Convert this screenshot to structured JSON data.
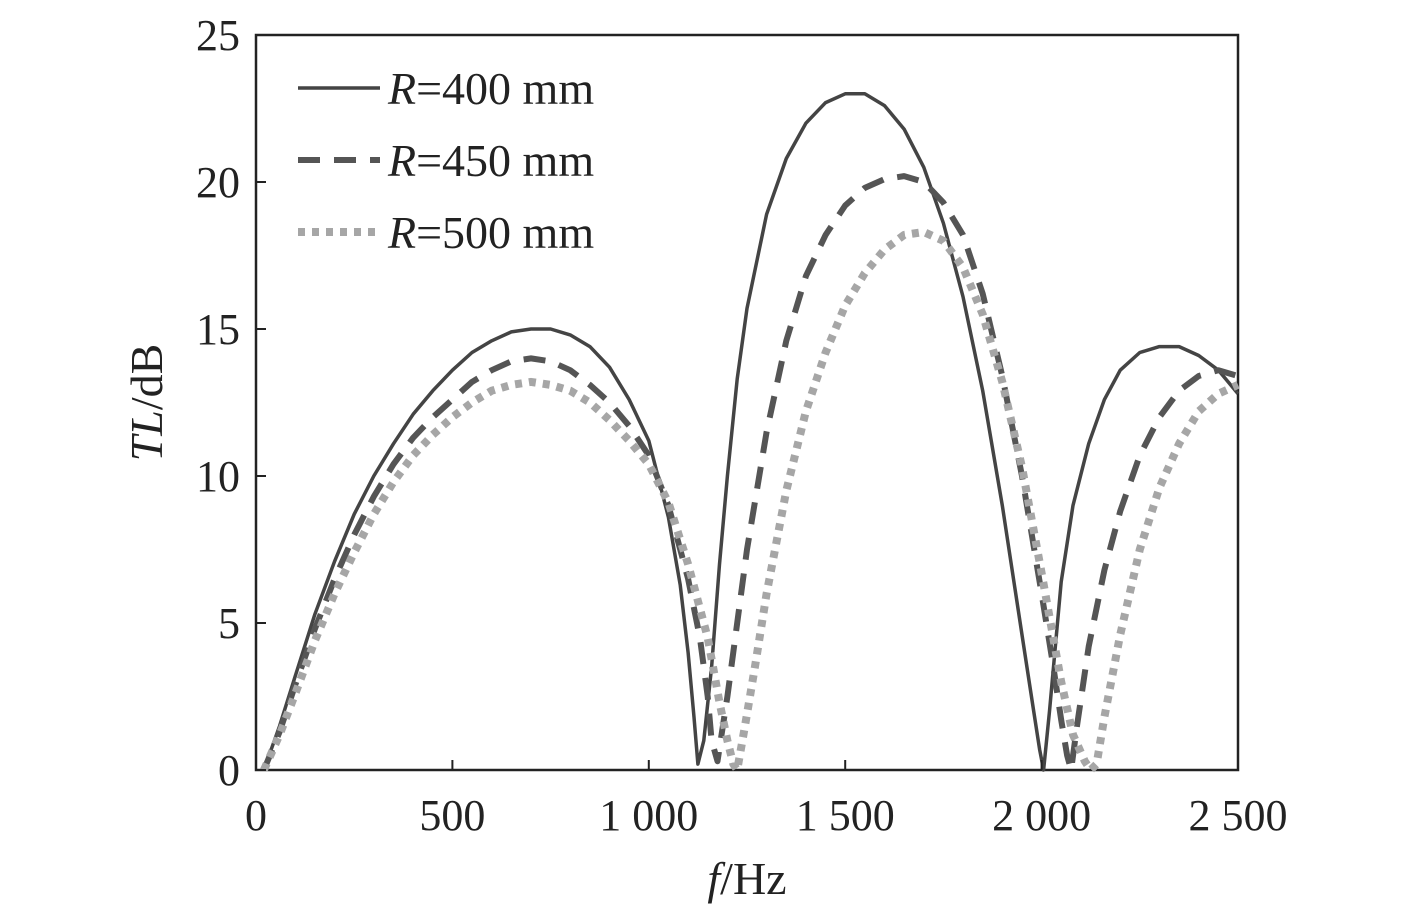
{
  "chart_data": {
    "type": "line",
    "xlabel": {
      "italic": "f",
      "rest": "/Hz"
    },
    "ylabel": {
      "italic": "TL",
      "rest": "/dB"
    },
    "xlim": [
      0,
      2500
    ],
    "ylim": [
      0,
      25
    ],
    "xticks": [
      0,
      500,
      1000,
      1500,
      2000,
      2500
    ],
    "xtick_labels": [
      "0",
      "500",
      "1 000",
      "1 500",
      "2 000",
      "2 500"
    ],
    "yticks": [
      0,
      5,
      10,
      15,
      20,
      25
    ],
    "ytick_labels": [
      "0",
      "5",
      "10",
      "15",
      "20",
      "25"
    ],
    "grid": false,
    "legend_position": "top-left",
    "series": [
      {
        "name": "R=400 mm",
        "label_italic": "R",
        "label_rest": "=400 mm",
        "style": "solid",
        "color": "#444444",
        "x": [
          20,
          60,
          100,
          150,
          200,
          250,
          300,
          350,
          400,
          450,
          500,
          550,
          600,
          650,
          700,
          750,
          800,
          850,
          900,
          950,
          1000,
          1050,
          1080,
          1100,
          1115,
          1125,
          1140,
          1160,
          1180,
          1200,
          1225,
          1250,
          1300,
          1350,
          1400,
          1450,
          1500,
          1550,
          1600,
          1650,
          1700,
          1750,
          1800,
          1850,
          1900,
          1950,
          1980,
          1995,
          2005,
          2020,
          2050,
          2080,
          2120,
          2160,
          2200,
          2250,
          2300,
          2350,
          2400,
          2450,
          2500
        ],
        "y": [
          0,
          1.5,
          3.2,
          5.3,
          7.1,
          8.7,
          10.0,
          11.1,
          12.1,
          12.9,
          13.6,
          14.2,
          14.6,
          14.9,
          15.0,
          15.0,
          14.8,
          14.4,
          13.7,
          12.6,
          11.2,
          8.6,
          6.3,
          4.0,
          1.8,
          0.2,
          1.0,
          3.5,
          7.0,
          10.0,
          13.3,
          15.7,
          18.9,
          20.8,
          22.0,
          22.7,
          23.0,
          23.0,
          22.6,
          21.8,
          20.5,
          18.6,
          16.1,
          12.9,
          9.0,
          4.6,
          2.0,
          0.7,
          0,
          2.0,
          6.4,
          9.0,
          11.1,
          12.6,
          13.6,
          14.2,
          14.4,
          14.4,
          14.1,
          13.6,
          12.8
        ]
      },
      {
        "name": "R=450 mm",
        "label_italic": "R",
        "label_rest": "=450 mm",
        "style": "dashed",
        "color": "#555555",
        "x": [
          20,
          60,
          100,
          150,
          200,
          250,
          300,
          350,
          400,
          450,
          500,
          550,
          600,
          650,
          700,
          750,
          800,
          850,
          900,
          950,
          1000,
          1050,
          1100,
          1130,
          1150,
          1160,
          1175,
          1200,
          1225,
          1250,
          1300,
          1350,
          1400,
          1450,
          1500,
          1550,
          1600,
          1650,
          1700,
          1750,
          1800,
          1850,
          1900,
          1950,
          2000,
          2030,
          2050,
          2065,
          2075,
          2090,
          2120,
          2160,
          2200,
          2250,
          2300,
          2350,
          2400,
          2450,
          2500
        ],
        "y": [
          0,
          1.3,
          2.9,
          4.8,
          6.5,
          8.0,
          9.3,
          10.4,
          11.3,
          12.0,
          12.6,
          13.2,
          13.6,
          13.9,
          14.0,
          13.9,
          13.6,
          13.1,
          12.5,
          11.7,
          10.7,
          9.0,
          6.5,
          4.5,
          2.5,
          1.0,
          0.3,
          2.5,
          5.0,
          7.5,
          11.5,
          14.6,
          16.8,
          18.2,
          19.2,
          19.8,
          20.1,
          20.2,
          20.0,
          19.3,
          18.2,
          16.2,
          13.4,
          10.0,
          6.0,
          3.5,
          1.7,
          0.5,
          0,
          1.5,
          4.2,
          6.8,
          8.8,
          10.7,
          12.0,
          12.9,
          13.4,
          13.6,
          13.4
        ]
      },
      {
        "name": "R=500 mm",
        "label_italic": "R",
        "label_rest": "=500 mm",
        "style": "dotted",
        "color": "#a6a6a6",
        "x": [
          20,
          60,
          100,
          150,
          200,
          250,
          300,
          350,
          400,
          450,
          500,
          550,
          600,
          650,
          700,
          750,
          800,
          850,
          900,
          950,
          1000,
          1050,
          1100,
          1150,
          1180,
          1200,
          1215,
          1225,
          1245,
          1270,
          1300,
          1350,
          1400,
          1450,
          1500,
          1550,
          1600,
          1650,
          1700,
          1750,
          1800,
          1850,
          1900,
          1950,
          2000,
          2050,
          2080,
          2110,
          2125,
          2140,
          2160,
          2200,
          2250,
          2300,
          2350,
          2400,
          2450,
          2500
        ],
        "y": [
          0,
          1.2,
          2.6,
          4.4,
          6.0,
          7.4,
          8.7,
          9.8,
          10.7,
          11.4,
          12.0,
          12.5,
          12.9,
          13.1,
          13.2,
          13.1,
          12.9,
          12.5,
          11.9,
          11.2,
          10.4,
          9.1,
          7.0,
          4.5,
          2.3,
          1.0,
          0.2,
          0,
          1.5,
          3.5,
          6.0,
          9.5,
          12.2,
          14.2,
          15.8,
          16.9,
          17.7,
          18.2,
          18.3,
          18.0,
          17.1,
          15.5,
          13.2,
          10.3,
          6.7,
          3.0,
          1.2,
          0.3,
          0,
          0.2,
          1.8,
          4.6,
          7.5,
          9.6,
          11.1,
          12.2,
          12.8,
          13.1
        ]
      }
    ]
  }
}
